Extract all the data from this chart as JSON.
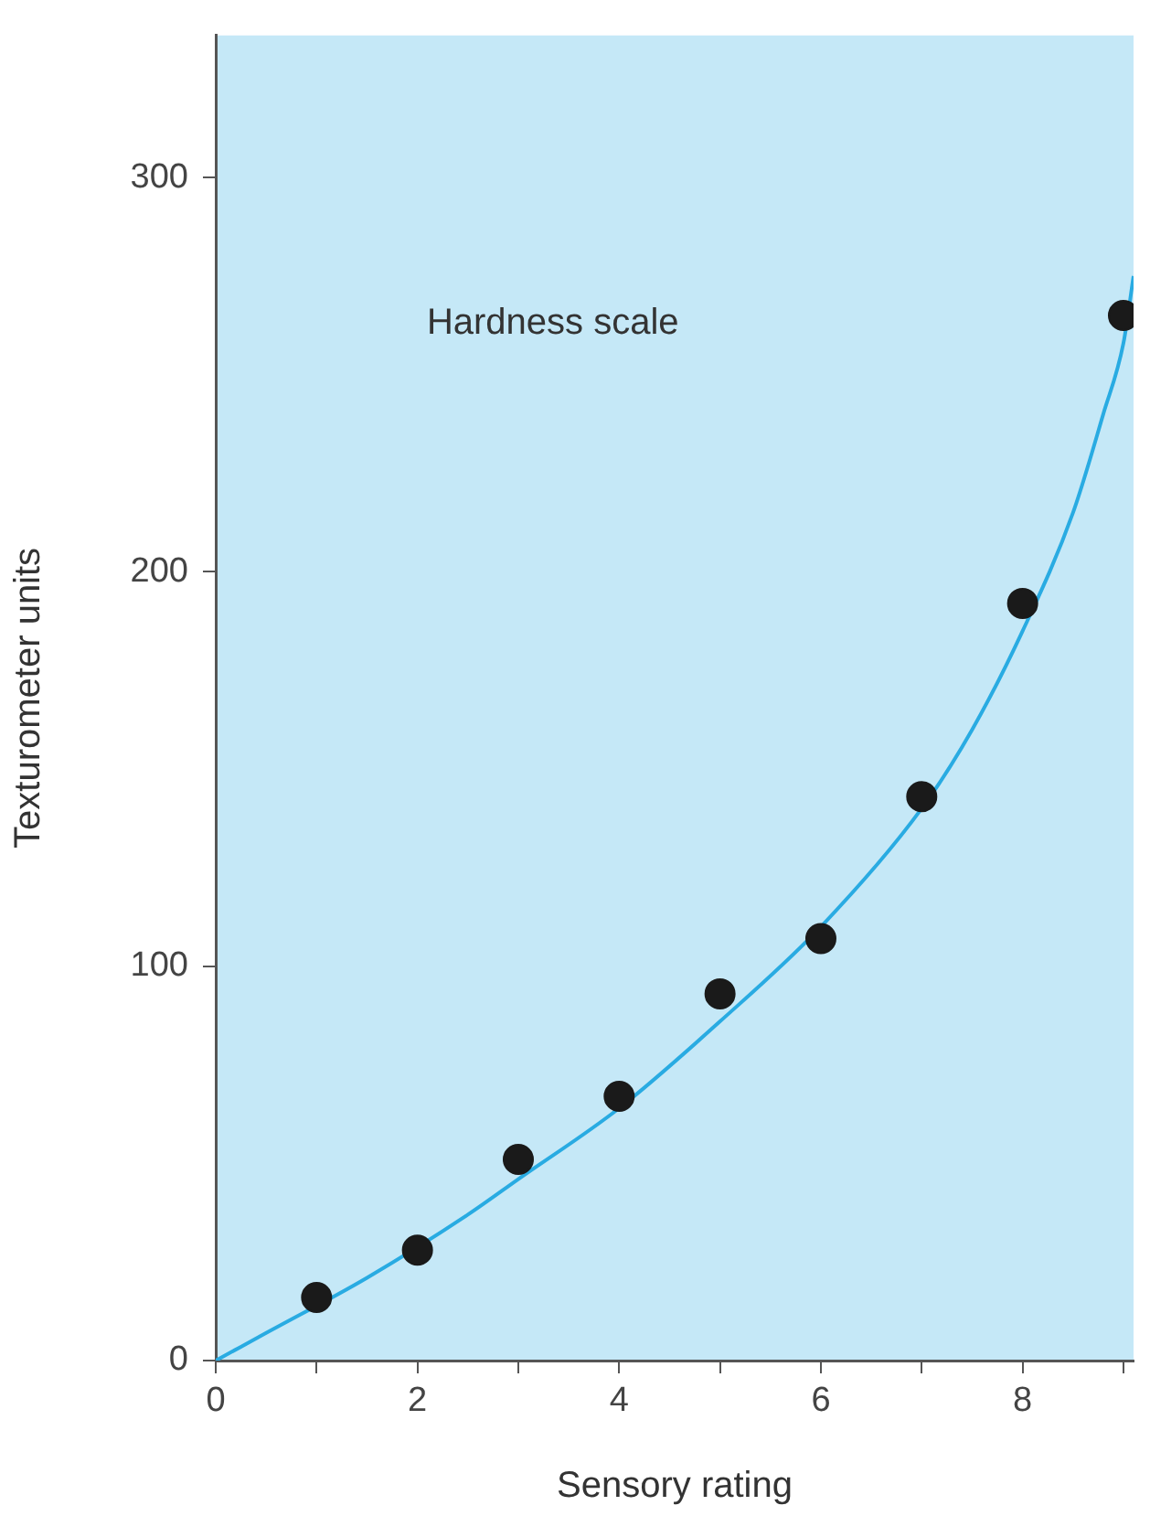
{
  "chart_data": {
    "type": "scatter",
    "xlabel": "Sensory rating",
    "ylabel": "Texturometer units",
    "annotations": [
      "Hardness scale"
    ],
    "xlim": [
      0,
      9.1
    ],
    "ylim": [
      0,
      336
    ],
    "xticks": [
      0,
      {
        "value": 1,
        "label": null
      },
      2,
      {
        "value": 3,
        "label": null
      },
      4,
      {
        "value": 5,
        "label": null
      },
      6,
      {
        "value": 7,
        "label": null
      },
      8,
      {
        "value": 9,
        "label": null
      }
    ],
    "yticks": [
      0,
      100,
      200,
      300
    ],
    "grid": false,
    "legend": false,
    "marker": "circle",
    "series": [
      {
        "type": "line",
        "color": "#29abe2",
        "marker": "none",
        "x": [
          0,
          0.5,
          1.5,
          2.5,
          3,
          4,
          5,
          6,
          7,
          7.5,
          8,
          8.5,
          8.8,
          9,
          9.1
        ],
        "values": [
          0,
          7,
          21,
          37,
          46,
          64,
          86,
          110,
          140,
          160,
          185,
          215,
          240,
          258,
          275
        ]
      },
      {
        "color": "#1a1a1a",
        "x": [
          1,
          2,
          3,
          4,
          5,
          6,
          7,
          8,
          9
        ],
        "values": [
          16,
          28,
          51,
          67,
          93,
          107,
          143,
          192,
          265
        ]
      }
    ]
  }
}
